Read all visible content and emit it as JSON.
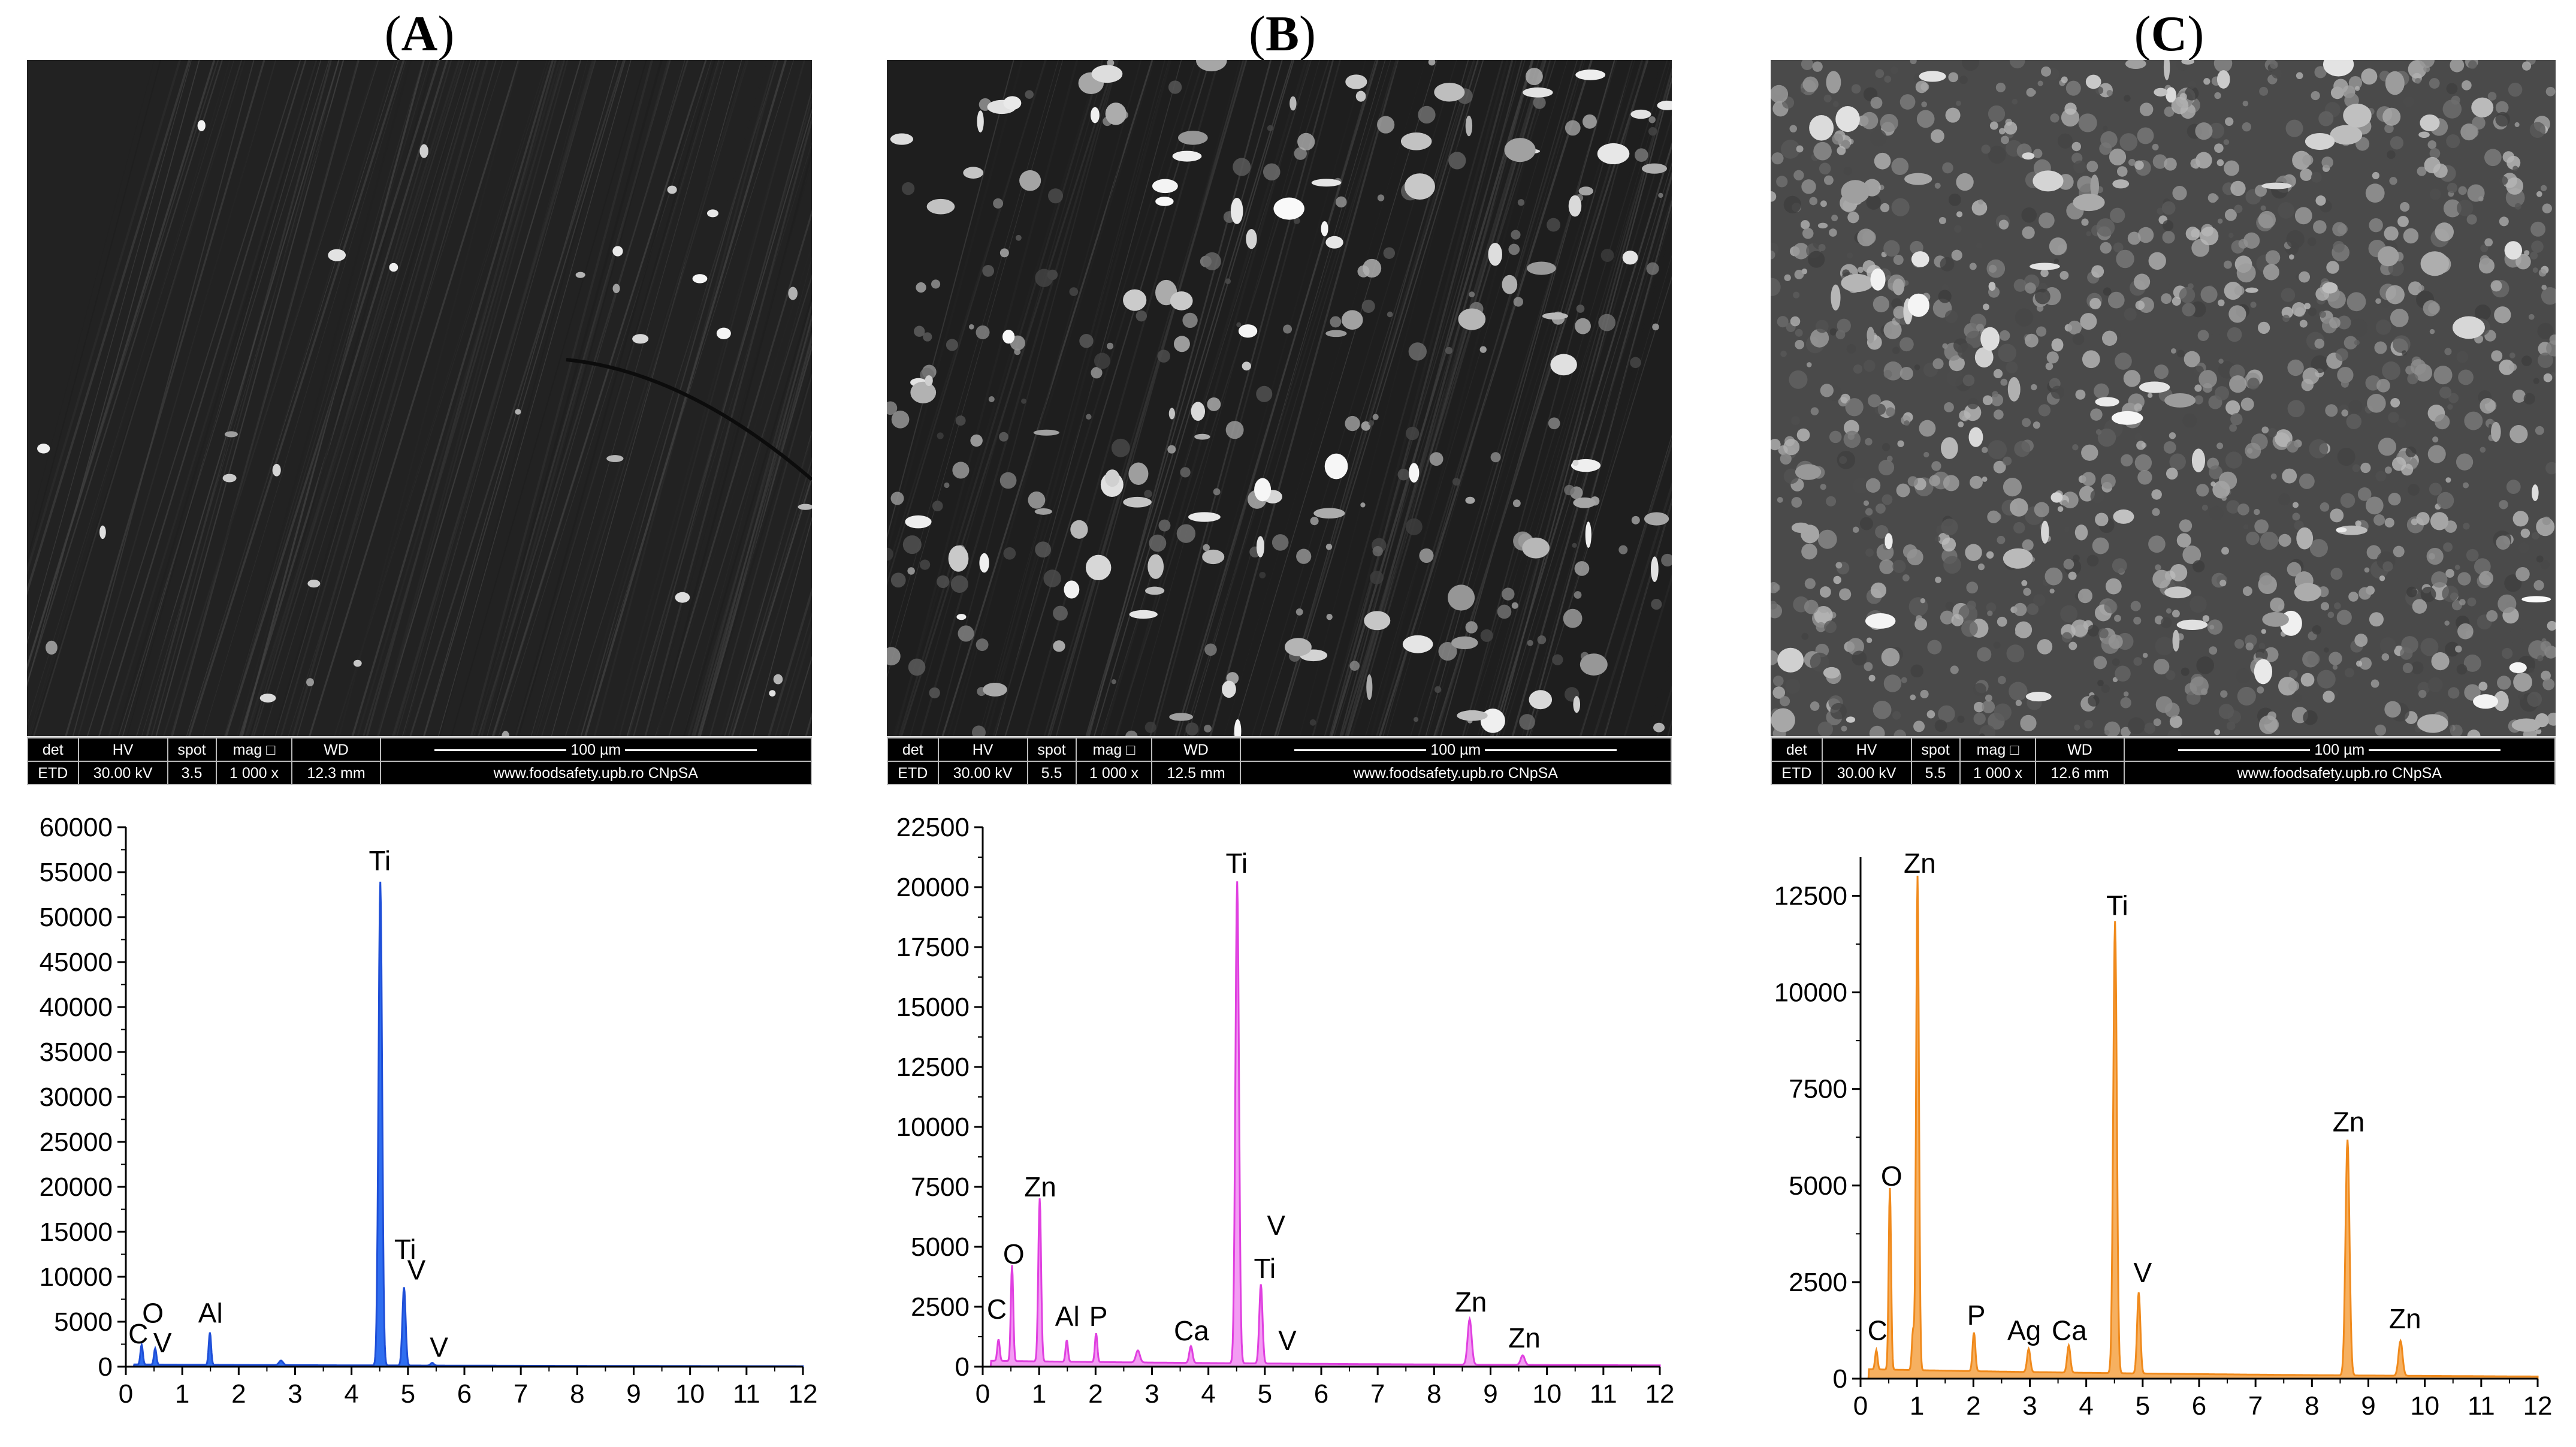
{
  "panels": [
    {
      "label": "A",
      "sem": {
        "det": "det",
        "hv": "HV",
        "spot": "spot",
        "mag": "mag □",
        "wd": "WD",
        "det_v": "ETD",
        "hv_v": "30.00 kV",
        "spot_v": "3.5",
        "mag_v": "1 000 x",
        "wd_v": "12.3 mm",
        "scale": "100 µm",
        "site": "www.foodsafety.upb.ro CNpSA"
      },
      "chart_data": {
        "type": "line",
        "color": "#1f4fd8",
        "fill": "#2f6ef0",
        "ylim": [
          0,
          60000
        ],
        "yticks": [
          0,
          5000,
          10000,
          15000,
          20000,
          25000,
          30000,
          35000,
          40000,
          45000,
          50000,
          55000,
          60000
        ],
        "xlim": [
          0,
          12
        ],
        "xticks": [
          0,
          1,
          2,
          3,
          4,
          5,
          6,
          7,
          8,
          9,
          10,
          11,
          12
        ],
        "peaks": [
          {
            "x": 0.28,
            "y": 2200,
            "w": 0.03
          },
          {
            "x": 0.52,
            "y": 1800,
            "w": 0.03
          },
          {
            "x": 1.49,
            "y": 3600,
            "w": 0.03
          },
          {
            "x": 2.75,
            "y": 500,
            "w": 0.05
          },
          {
            "x": 4.51,
            "y": 53800,
            "w": 0.045
          },
          {
            "x": 4.93,
            "y": 8700,
            "w": 0.04
          },
          {
            "x": 5.43,
            "y": 300,
            "w": 0.04
          }
        ],
        "baseline": 250,
        "labels": [
          {
            "text": "C",
            "x": 0.22,
            "y": 2600
          },
          {
            "text": "O",
            "x": 0.48,
            "y": 4900
          },
          {
            "text": "V",
            "x": 0.65,
            "y": 1600
          },
          {
            "text": "Al",
            "x": 1.5,
            "y": 4900
          },
          {
            "text": "Ti",
            "x": 4.5,
            "y": 55200
          },
          {
            "text": "Ti",
            "x": 4.95,
            "y": 12000
          },
          {
            "text": "V",
            "x": 5.15,
            "y": 9700
          },
          {
            "text": "V",
            "x": 5.55,
            "y": 1100
          }
        ]
      }
    },
    {
      "label": "B",
      "sem": {
        "det": "det",
        "hv": "HV",
        "spot": "spot",
        "mag": "mag □",
        "wd": "WD",
        "det_v": "ETD",
        "hv_v": "30.00 kV",
        "spot_v": "5.5",
        "mag_v": "1 000 x",
        "wd_v": "12.5 mm",
        "scale": "100 µm",
        "site": "www.foodsafety.upb.ro CNpSA"
      },
      "chart_data": {
        "type": "line",
        "color": "#e040e0",
        "fill": "#f39cf3",
        "ylim": [
          0,
          22500
        ],
        "yticks": [
          0,
          2500,
          5000,
          7500,
          10000,
          12500,
          15000,
          17500,
          20000,
          22500
        ],
        "xlim": [
          0,
          12
        ],
        "xticks": [
          0,
          1,
          2,
          3,
          4,
          5,
          6,
          7,
          8,
          9,
          10,
          11,
          12
        ],
        "peaks": [
          {
            "x": 0.28,
            "y": 900,
            "w": 0.03
          },
          {
            "x": 0.52,
            "y": 4000,
            "w": 0.03
          },
          {
            "x": 1.01,
            "y": 6800,
            "w": 0.035
          },
          {
            "x": 1.49,
            "y": 900,
            "w": 0.03
          },
          {
            "x": 2.01,
            "y": 1200,
            "w": 0.03
          },
          {
            "x": 2.75,
            "y": 500,
            "w": 0.05
          },
          {
            "x": 3.69,
            "y": 700,
            "w": 0.04
          },
          {
            "x": 4.51,
            "y": 20100,
            "w": 0.045
          },
          {
            "x": 4.93,
            "y": 3300,
            "w": 0.04
          },
          {
            "x": 8.63,
            "y": 1900,
            "w": 0.05
          },
          {
            "x": 9.57,
            "y": 400,
            "w": 0.05
          }
        ],
        "baseline": 250,
        "labels": [
          {
            "text": "C",
            "x": 0.25,
            "y": 2000
          },
          {
            "text": "O",
            "x": 0.55,
            "y": 4300
          },
          {
            "text": "Zn",
            "x": 1.02,
            "y": 7100
          },
          {
            "text": "Al",
            "x": 1.5,
            "y": 1700
          },
          {
            "text": "P",
            "x": 2.05,
            "y": 1700
          },
          {
            "text": "Ca",
            "x": 3.7,
            "y": 1100
          },
          {
            "text": "Ti",
            "x": 4.5,
            "y": 20600
          },
          {
            "text": "V",
            "x": 5.2,
            "y": 5500
          },
          {
            "text": "Ti",
            "x": 5.0,
            "y": 3700
          },
          {
            "text": "V",
            "x": 5.4,
            "y": 700
          },
          {
            "text": "Zn",
            "x": 8.65,
            "y": 2300
          },
          {
            "text": "Zn",
            "x": 9.6,
            "y": 800
          }
        ]
      }
    },
    {
      "label": "C",
      "sem": {
        "det": "det",
        "hv": "HV",
        "spot": "spot",
        "mag": "mag □",
        "wd": "WD",
        "det_v": "ETD",
        "hv_v": "30.00 kV",
        "spot_v": "5.5",
        "mag_v": "1 000 x",
        "wd_v": "12.6 mm",
        "scale": "100 µm",
        "site": "www.foodsafety.upb.ro CNpSA"
      },
      "chart_data": {
        "type": "line",
        "color": "#f08a1c",
        "fill": "#f6b060",
        "ylim": [
          0,
          13500
        ],
        "yticks": [
          0,
          2500,
          5000,
          7500,
          10000,
          12500
        ],
        "xlim": [
          0,
          12
        ],
        "xticks": [
          0,
          1,
          2,
          3,
          4,
          5,
          6,
          7,
          8,
          9,
          10,
          11,
          12
        ],
        "peaks": [
          {
            "x": 0.28,
            "y": 500,
            "w": 0.03
          },
          {
            "x": 0.52,
            "y": 4700,
            "w": 0.03
          },
          {
            "x": 0.93,
            "y": 1000,
            "w": 0.03
          },
          {
            "x": 1.01,
            "y": 12800,
            "w": 0.035
          },
          {
            "x": 2.01,
            "y": 1000,
            "w": 0.035
          },
          {
            "x": 2.98,
            "y": 600,
            "w": 0.04
          },
          {
            "x": 3.69,
            "y": 700,
            "w": 0.04
          },
          {
            "x": 4.51,
            "y": 11700,
            "w": 0.045
          },
          {
            "x": 4.93,
            "y": 2100,
            "w": 0.04
          },
          {
            "x": 8.63,
            "y": 6100,
            "w": 0.05
          },
          {
            "x": 9.57,
            "y": 900,
            "w": 0.05
          }
        ],
        "baseline": 250,
        "labels": [
          {
            "text": "C",
            "x": 0.3,
            "y": 1000
          },
          {
            "text": "O",
            "x": 0.55,
            "y": 5000
          },
          {
            "text": "Zn",
            "x": 1.05,
            "y": 13100
          },
          {
            "text": "P",
            "x": 2.05,
            "y": 1400
          },
          {
            "text": "Ag",
            "x": 2.9,
            "y": 1000
          },
          {
            "text": "Ca",
            "x": 3.7,
            "y": 1000
          },
          {
            "text": "Ti",
            "x": 4.55,
            "y": 12000
          },
          {
            "text": "V",
            "x": 5.0,
            "y": 2500
          },
          {
            "text": "Zn",
            "x": 8.65,
            "y": 6400
          },
          {
            "text": "Zn",
            "x": 9.65,
            "y": 1300
          }
        ]
      }
    }
  ]
}
